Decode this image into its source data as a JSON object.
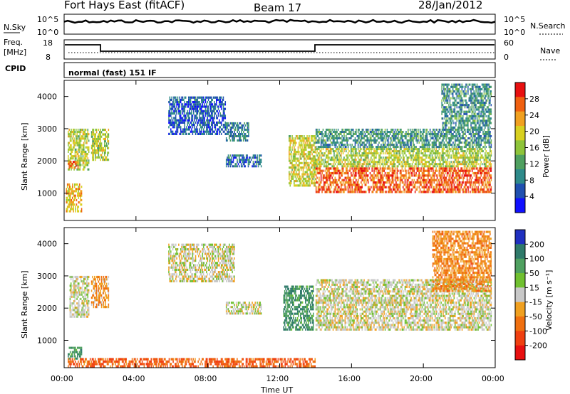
{
  "header": {
    "station": "Fort Hays East (fitACF)",
    "beam": "Beam 17",
    "date": "28/Jan/2012"
  },
  "noise_panel": {
    "left_label": "N.Sky",
    "right_label": "N.Search",
    "ytick_top": "10^5",
    "ytick_bottom": "10^0",
    "ytick_top_right": "10^5",
    "ytick_bottom_right": "10^0"
  },
  "freq_panel": {
    "left_label_1": "Freq.",
    "left_label_2": "[MHz]",
    "right_label": "Nave",
    "ytick_top": "18",
    "ytick_bottom": "8",
    "ytick_top_right": "60",
    "ytick_bottom_right": "0"
  },
  "cpid": {
    "label": "CPID",
    "value": "normal (fast) 151 IF"
  },
  "chart_data": [
    {
      "type": "heatmap",
      "name": "power",
      "ylabel": "Slant Range [km]",
      "yticks": [
        "1000",
        "2000",
        "3000",
        "4000"
      ],
      "ylim": [
        150,
        4500
      ],
      "xlim": [
        0,
        24
      ],
      "colorbar_label": "Power [dB]",
      "colorbar_ticks": [
        "4",
        "8",
        "12",
        "16",
        "20",
        "24",
        "28"
      ],
      "colorbar_colors": [
        "#1010ff",
        "#2050b0",
        "#2e8a8a",
        "#4fa060",
        "#8ec43a",
        "#d8d020",
        "#f0a020",
        "#f06010",
        "#e81010"
      ],
      "regions": [
        {
          "t0": 0.2,
          "t1": 1.4,
          "r0": 1700,
          "r1": 3000,
          "level": 0.55
        },
        {
          "t0": 0.2,
          "t1": 0.8,
          "r0": 1750,
          "r1": 2000,
          "level": 0.85
        },
        {
          "t0": 1.5,
          "t1": 2.5,
          "r0": 2000,
          "r1": 3000,
          "level": 0.55
        },
        {
          "t0": 0.1,
          "t1": 1.0,
          "r0": 400,
          "r1": 1300,
          "level": 0.7
        },
        {
          "t0": 5.8,
          "t1": 9.0,
          "r0": 2800,
          "r1": 4000,
          "level": 0.15
        },
        {
          "t0": 9.0,
          "t1": 10.3,
          "r0": 2600,
          "r1": 3200,
          "level": 0.25
        },
        {
          "t0": 9.0,
          "t1": 11.0,
          "r0": 1800,
          "r1": 2200,
          "level": 0.2
        },
        {
          "t0": 12.5,
          "t1": 14.0,
          "r0": 1200,
          "r1": 2800,
          "level": 0.6
        },
        {
          "t0": 14.0,
          "t1": 23.8,
          "r0": 1000,
          "r1": 1800,
          "level": 0.88
        },
        {
          "t0": 14.0,
          "t1": 23.8,
          "r0": 1800,
          "r1": 2400,
          "level": 0.55
        },
        {
          "t0": 14.0,
          "t1": 23.8,
          "r0": 2400,
          "r1": 3000,
          "level": 0.3
        },
        {
          "t0": 21.0,
          "t1": 23.8,
          "r0": 3000,
          "r1": 4400,
          "level": 0.3
        }
      ]
    },
    {
      "type": "heatmap",
      "name": "velocity",
      "ylabel": "Slant Range [km]",
      "yticks": [
        "1000",
        "2000",
        "3000",
        "4000"
      ],
      "ylim": [
        150,
        4500
      ],
      "xlim": [
        0,
        24
      ],
      "xlabel": "Time UT",
      "xticks": [
        "00:00",
        "04:00",
        "08:00",
        "12:00",
        "16:00",
        "20:00",
        "00:00"
      ],
      "colorbar_label": "Velocity [m s⁻¹]",
      "colorbar_ticks": [
        "200",
        "100",
        "50",
        "15",
        "-15",
        "-50",
        "-100",
        "-200"
      ],
      "colorbar_colors": [
        "#2030c0",
        "#2f7a6a",
        "#4fa060",
        "#70c030",
        "#c8c8c8",
        "#f0a020",
        "#f07010",
        "#f04010",
        "#e81010"
      ],
      "regions": [
        {
          "t0": 0.3,
          "t1": 1.4,
          "r0": 1700,
          "r1": 3000,
          "vel": 0
        },
        {
          "t0": 1.5,
          "t1": 2.5,
          "r0": 2000,
          "r1": 3000,
          "vel": -0.3
        },
        {
          "t0": 0.2,
          "t1": 1.0,
          "r0": 400,
          "r1": 800,
          "vel": 0.6
        },
        {
          "t0": 5.8,
          "t1": 9.5,
          "r0": 2800,
          "r1": 4000,
          "vel": 0
        },
        {
          "t0": 9.0,
          "t1": 11.0,
          "r0": 1800,
          "r1": 2200,
          "vel": 0
        },
        {
          "t0": 12.2,
          "t1": 13.9,
          "r0": 1300,
          "r1": 2700,
          "vel": 0.6
        },
        {
          "t0": 14.0,
          "t1": 23.8,
          "r0": 1300,
          "r1": 2900,
          "vel": 0
        },
        {
          "t0": 0.2,
          "t1": 14.0,
          "r0": 150,
          "r1": 450,
          "vel": -0.6
        },
        {
          "t0": 20.5,
          "t1": 23.8,
          "r0": 2500,
          "r1": 4400,
          "vel": -0.4
        }
      ]
    }
  ]
}
